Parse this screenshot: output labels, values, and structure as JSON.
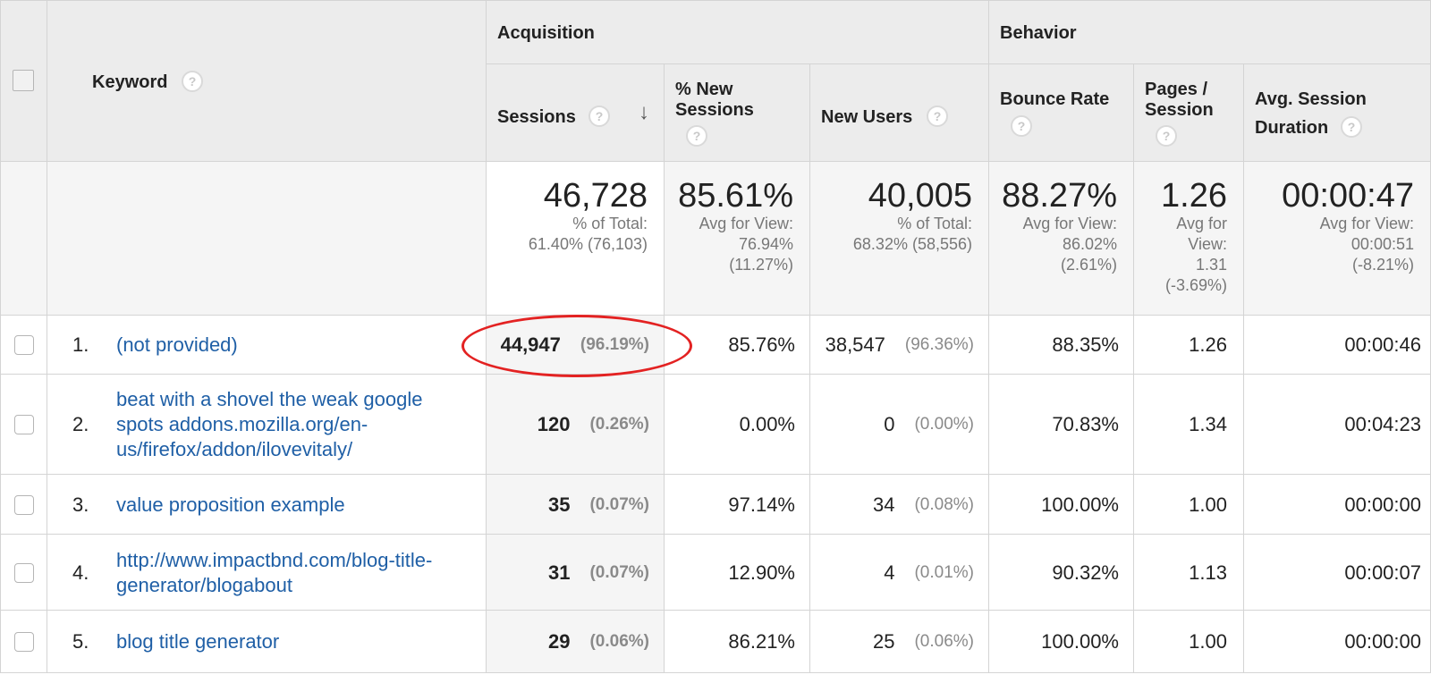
{
  "header": {
    "keyword": "Keyword",
    "groups": {
      "acquisition": "Acquisition",
      "behavior": "Behavior"
    },
    "columns": {
      "sessions": "Sessions",
      "pct_new_sessions_line1": "% New",
      "pct_new_sessions_line2": "Sessions",
      "new_users": "New Users",
      "bounce_rate": "Bounce Rate",
      "pages_session_line1": "Pages /",
      "pages_session_line2": "Session",
      "avg_duration_line1": "Avg. Session",
      "avg_duration_line2": "Duration"
    },
    "help_glyph": "?",
    "sort_glyph": "↓"
  },
  "summary": {
    "sessions": {
      "value": "46,728",
      "line1": "% of Total:",
      "line2": "61.40% (76,103)"
    },
    "pct_new_sessions": {
      "value": "85.61%",
      "line1": "Avg for View:",
      "line2": "76.94%",
      "line3": "(11.27%)"
    },
    "new_users": {
      "value": "40,005",
      "line1": "% of Total:",
      "line2": "68.32% (58,556)"
    },
    "bounce_rate": {
      "value": "88.27%",
      "line1": "Avg for View:",
      "line2": "86.02%",
      "line3": "(2.61%)"
    },
    "pages_session": {
      "value": "1.26",
      "line1": "Avg for",
      "line2": "View:",
      "line3": "1.31",
      "line4": "(-3.69%)"
    },
    "avg_duration": {
      "value": "00:00:47",
      "line1": "Avg for View:",
      "line2": "00:00:51",
      "line3": "(-8.21%)"
    }
  },
  "rows": [
    {
      "num": "1.",
      "keyword_lines": [
        "(not provided)"
      ],
      "sessions": "44,947",
      "sessions_pct": "(96.19%)",
      "pct_new": "85.76%",
      "new_users": "38,547",
      "new_users_pct": "(96.36%)",
      "bounce": "88.35%",
      "pages": "1.26",
      "duration": "00:00:46"
    },
    {
      "num": "2.",
      "keyword_lines": [
        "beat with a shovel the weak google",
        "spots addons.mozilla.org/en-",
        "us/firefox/addon/ilovevitaly/"
      ],
      "sessions": "120",
      "sessions_pct": "(0.26%)",
      "pct_new": "0.00%",
      "new_users": "0",
      "new_users_pct": "(0.00%)",
      "bounce": "70.83%",
      "pages": "1.34",
      "duration": "00:04:23"
    },
    {
      "num": "3.",
      "keyword_lines": [
        "value proposition example"
      ],
      "sessions": "35",
      "sessions_pct": "(0.07%)",
      "pct_new": "97.14%",
      "new_users": "34",
      "new_users_pct": "(0.08%)",
      "bounce": "100.00%",
      "pages": "1.00",
      "duration": "00:00:00"
    },
    {
      "num": "4.",
      "keyword_lines": [
        "http://www.impactbnd.com/blog-title-",
        "generator/blogabout"
      ],
      "sessions": "31",
      "sessions_pct": "(0.07%)",
      "pct_new": "12.90%",
      "new_users": "4",
      "new_users_pct": "(0.01%)",
      "bounce": "90.32%",
      "pages": "1.13",
      "duration": "00:00:07"
    },
    {
      "num": "5.",
      "keyword_lines": [
        "blog title generator"
      ],
      "sessions": "29",
      "sessions_pct": "(0.06%)",
      "pct_new": "86.21%",
      "new_users": "25",
      "new_users_pct": "(0.06%)",
      "bounce": "100.00%",
      "pages": "1.00",
      "duration": "00:00:00"
    }
  ],
  "colors": {
    "link": "#1f5fa6",
    "highlight_circle": "#e32222",
    "header_bg": "#ececec",
    "sorted_column_bg": "#f5f5f5"
  }
}
